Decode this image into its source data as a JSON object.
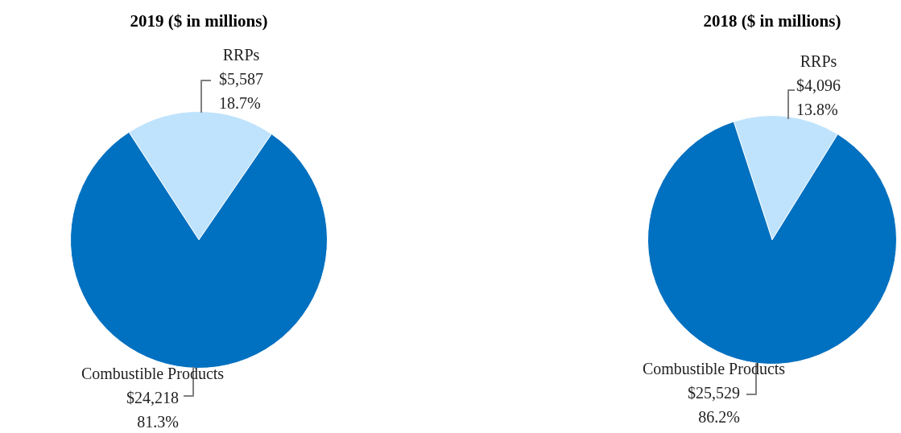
{
  "chart_data": [
    {
      "type": "pie",
      "title": "2019 ($ in millions)",
      "categories": [
        "RRPs",
        "Combustible Products"
      ],
      "values": [
        5587,
        24218
      ],
      "colors": [
        "#bfe3fc",
        "#0070c0"
      ],
      "value_labels": [
        "$5,587\n18.7%",
        "$24,218\n81.3%"
      ],
      "legend": false
    },
    {
      "type": "pie",
      "title": "2018 ($ in millions)",
      "categories": [
        "RRPs",
        "Combustible Products"
      ],
      "values": [
        4096,
        25529
      ],
      "colors": [
        "#bfe3fc",
        "#0070c0"
      ],
      "value_labels": [
        "$4,096\n13.8%",
        "$25,529\n86.2%"
      ],
      "legend": false
    }
  ]
}
